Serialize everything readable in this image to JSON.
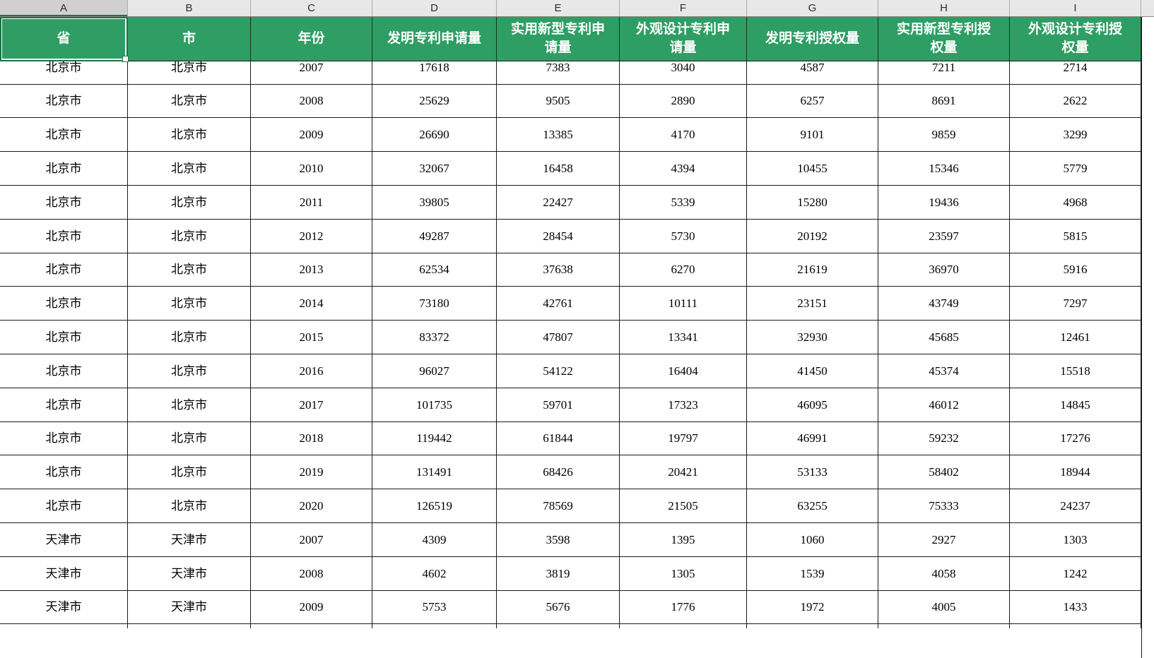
{
  "sheet": {
    "column_letters": [
      "A",
      "B",
      "C",
      "D",
      "E",
      "F",
      "G",
      "H",
      "I"
    ],
    "selected_column": "A",
    "selected_cell": "A1"
  },
  "table": {
    "headers": [
      "省",
      "市",
      "年份",
      "发明专利申请量",
      "实用新型专利申请量",
      "外观设计专利申请量",
      "发明专利授权量",
      "实用新型专利授权量",
      "外观设计专利授权量"
    ],
    "rows": [
      [
        "北京市",
        "北京市",
        "2007",
        "17618",
        "7383",
        "3040",
        "4587",
        "7211",
        "2714"
      ],
      [
        "北京市",
        "北京市",
        "2008",
        "25629",
        "9505",
        "2890",
        "6257",
        "8691",
        "2622"
      ],
      [
        "北京市",
        "北京市",
        "2009",
        "26690",
        "13385",
        "4170",
        "9101",
        "9859",
        "3299"
      ],
      [
        "北京市",
        "北京市",
        "2010",
        "32067",
        "16458",
        "4394",
        "10455",
        "15346",
        "5779"
      ],
      [
        "北京市",
        "北京市",
        "2011",
        "39805",
        "22427",
        "5339",
        "15280",
        "19436",
        "4968"
      ],
      [
        "北京市",
        "北京市",
        "2012",
        "49287",
        "28454",
        "5730",
        "20192",
        "23597",
        "5815"
      ],
      [
        "北京市",
        "北京市",
        "2013",
        "62534",
        "37638",
        "6270",
        "21619",
        "36970",
        "5916"
      ],
      [
        "北京市",
        "北京市",
        "2014",
        "73180",
        "42761",
        "10111",
        "23151",
        "43749",
        "7297"
      ],
      [
        "北京市",
        "北京市",
        "2015",
        "83372",
        "47807",
        "13341",
        "32930",
        "45685",
        "12461"
      ],
      [
        "北京市",
        "北京市",
        "2016",
        "96027",
        "54122",
        "16404",
        "41450",
        "45374",
        "15518"
      ],
      [
        "北京市",
        "北京市",
        "2017",
        "101735",
        "59701",
        "17323",
        "46095",
        "46012",
        "14845"
      ],
      [
        "北京市",
        "北京市",
        "2018",
        "119442",
        "61844",
        "19797",
        "46991",
        "59232",
        "17276"
      ],
      [
        "北京市",
        "北京市",
        "2019",
        "131491",
        "68426",
        "20421",
        "53133",
        "58402",
        "18944"
      ],
      [
        "北京市",
        "北京市",
        "2020",
        "126519",
        "78569",
        "21505",
        "63255",
        "75333",
        "24237"
      ],
      [
        "天津市",
        "天津市",
        "2007",
        "4309",
        "3598",
        "1395",
        "1060",
        "2927",
        "1303"
      ],
      [
        "天津市",
        "天津市",
        "2008",
        "4602",
        "3819",
        "1305",
        "1539",
        "4058",
        "1242"
      ],
      [
        "天津市",
        "天津市",
        "2009",
        "5753",
        "5676",
        "1776",
        "1972",
        "4005",
        "1433"
      ]
    ]
  },
  "colors": {
    "header_bg": "#2E9E64",
    "header_text": "#FFFFFF",
    "selection_green": "#1F7245",
    "letter_row_bg": "#E8E8E8",
    "letter_row_selected_bg": "#D0D0D0",
    "grid_line": "#1A1A1A",
    "cell_bg": "#FFFFFF",
    "cell_text": "#000000"
  }
}
